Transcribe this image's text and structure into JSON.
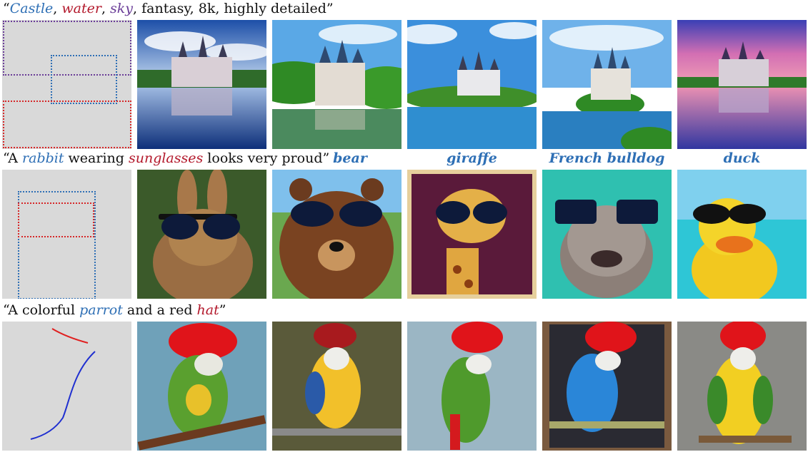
{
  "rows": [
    {
      "caption_parts": [
        {
          "text": "“",
          "style": "plain"
        },
        {
          "text": "Castle",
          "style": "blue"
        },
        {
          "text": ", ",
          "style": "plain"
        },
        {
          "text": "water",
          "style": "red"
        },
        {
          "text": ", ",
          "style": "plain"
        },
        {
          "text": "sky",
          "style": "purple"
        },
        {
          "text": ", fantasy, 8k, highly detailed”",
          "style": "plain"
        }
      ],
      "sublabels": [],
      "images": [
        "castle-image-1",
        "castle-image-2",
        "castle-image-3",
        "castle-image-4",
        "castle-image-5"
      ]
    },
    {
      "caption_parts": [
        {
          "text": "“A ",
          "style": "plain"
        },
        {
          "text": "rabbit",
          "style": "blue"
        },
        {
          "text": " wearing ",
          "style": "plain"
        },
        {
          "text": "sunglasses",
          "style": "red"
        },
        {
          "text": " looks very proud”",
          "style": "plain"
        }
      ],
      "sublabels": [
        "bear",
        "giraffe",
        "French bulldog",
        "duck"
      ],
      "images": [
        "rabbit-sunglasses-image",
        "bear-sunglasses-image",
        "giraffe-sunglasses-image",
        "bulldog-sunglasses-image",
        "duck-sunglasses-image"
      ]
    },
    {
      "caption_parts": [
        {
          "text": "“A colorful ",
          "style": "plain"
        },
        {
          "text": "parrot",
          "style": "blue"
        },
        {
          "text": " and a red ",
          "style": "plain"
        },
        {
          "text": "hat",
          "style": "red"
        },
        {
          "text": "”",
          "style": "plain"
        }
      ],
      "sublabels": [],
      "images": [
        "parrot-hat-image-1",
        "parrot-hat-image-2",
        "parrot-hat-image-3",
        "parrot-hat-image-4",
        "parrot-hat-image-5"
      ]
    }
  ],
  "colors": {
    "blue": "#2e6fb5",
    "red": "#b3182b",
    "purple": "#6a3d98",
    "layout_bg": "#d9d9d9"
  }
}
